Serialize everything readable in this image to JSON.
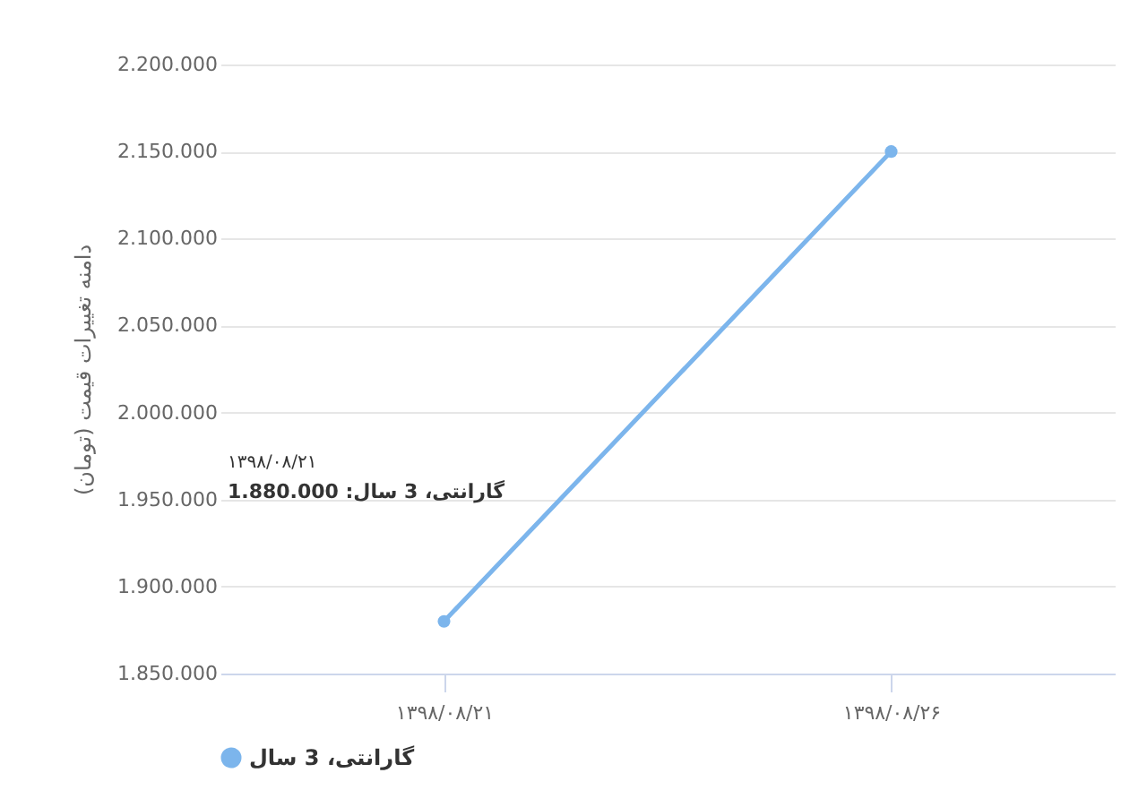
{
  "chart_data": {
    "type": "line",
    "ylabel": "دامنه تغییرات قیمت (تومان)",
    "categories": [
      "۱۳۹۸/۰۸/۲۱",
      "۱۳۹۸/۰۸/۲۶"
    ],
    "series": [
      {
        "name": "گارانتی، 3 سال",
        "color": "#7cb5ec",
        "values": [
          1880000,
          2150000
        ]
      }
    ],
    "ylim": [
      1850000,
      2200000
    ],
    "yticks": [
      {
        "value": 1850000,
        "label": "1.850.000"
      },
      {
        "value": 1900000,
        "label": "1.900.000"
      },
      {
        "value": 1950000,
        "label": "1.950.000"
      },
      {
        "value": 2000000,
        "label": "2.000.000"
      },
      {
        "value": 2050000,
        "label": "2.050.000"
      },
      {
        "value": 2100000,
        "label": "2.100.000"
      },
      {
        "value": 2150000,
        "label": "2.150.000"
      },
      {
        "value": 2200000,
        "label": "2.200.000"
      }
    ],
    "annotations": [
      "۱۳۹۸/۰۸/۲۱",
      "گارانتی، 3 سال: 1.880.000"
    ],
    "grid": "y",
    "legend": "bottom",
    "marker": "circle",
    "line_style": "solid"
  }
}
